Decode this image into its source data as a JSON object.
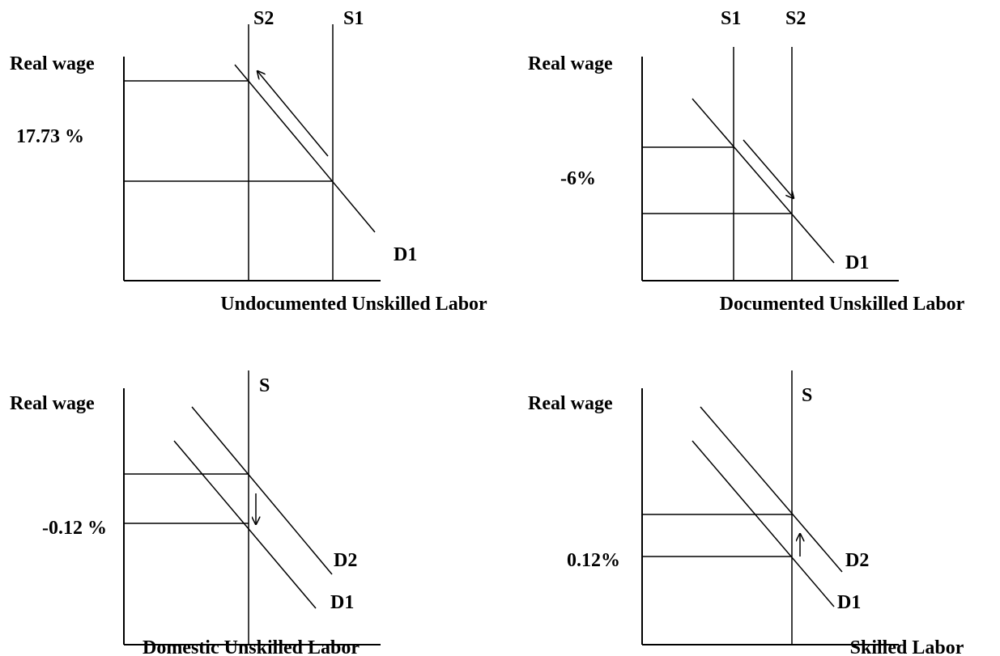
{
  "panels": [
    {
      "y_label": "Real wage",
      "x_label": "Undocumented Unskilled Labor",
      "change": "17.73 %",
      "curves": [
        "S2",
        "S1",
        "D1"
      ]
    },
    {
      "y_label": "Real wage",
      "x_label": "Documented Unskilled Labor",
      "change": "-6%",
      "curves": [
        "S1",
        "S2",
        "D1"
      ]
    },
    {
      "y_label": "Real wage",
      "x_label": "Domestic Unskilled Labor",
      "change": "-0.12 %",
      "curves": [
        "S",
        "D2",
        "D1"
      ]
    },
    {
      "y_label": "Real wage",
      "x_label": "Skilled Labor",
      "change": "0.12%",
      "curves": [
        "S",
        "D2",
        "D1"
      ]
    }
  ]
}
